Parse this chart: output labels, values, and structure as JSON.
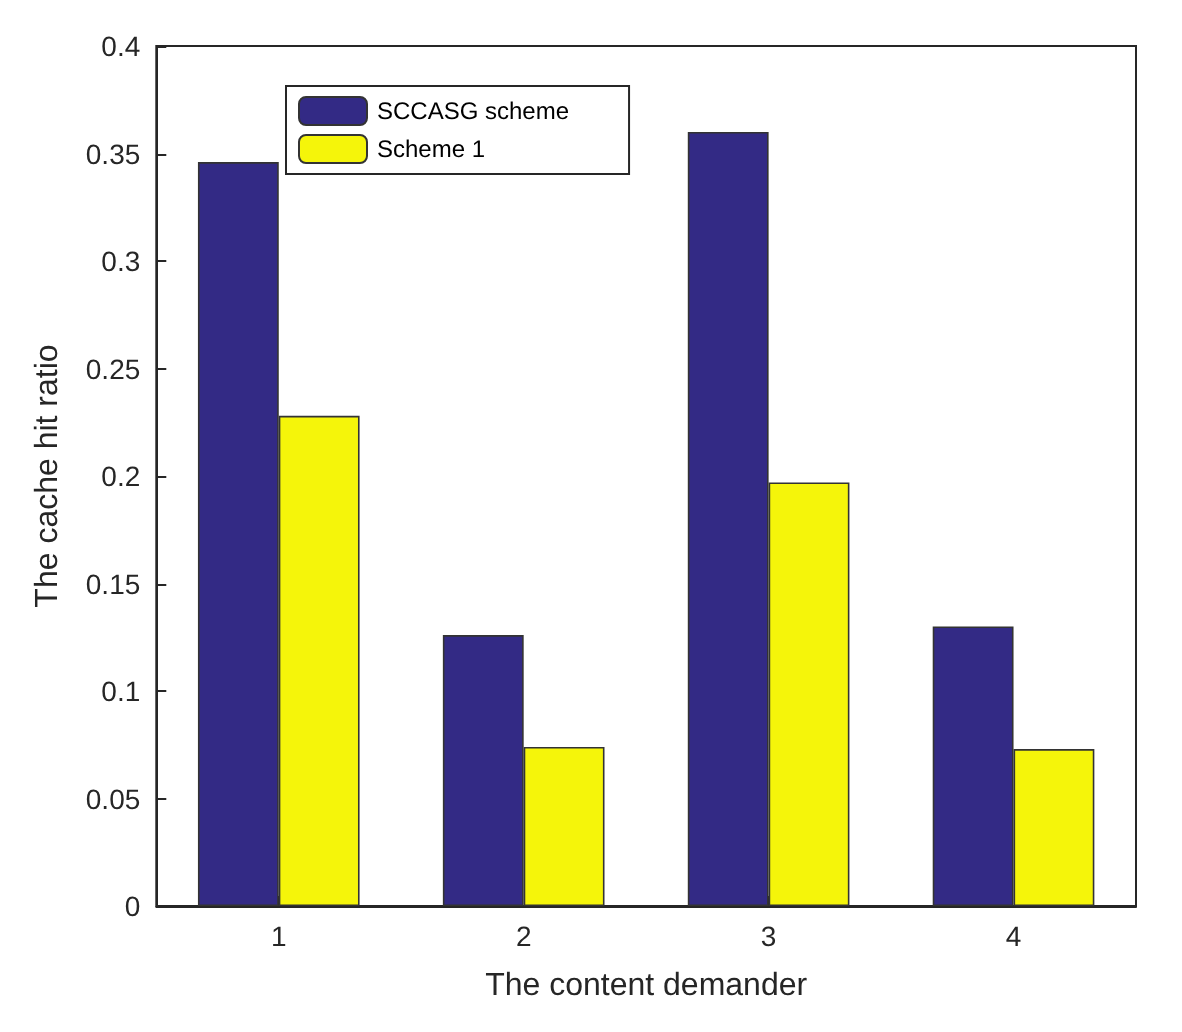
{
  "chart_data": {
    "type": "bar",
    "xlabel": "The content demander",
    "ylabel": "The cache hit ratio",
    "categories": [
      "1",
      "2",
      "3",
      "4"
    ],
    "series": [
      {
        "name": "SCCASG scheme",
        "color": "#332a85",
        "values": [
          0.346,
          0.126,
          0.36,
          0.13
        ]
      },
      {
        "name": "Scheme 1",
        "color": "#f5f50a",
        "values": [
          0.228,
          0.074,
          0.197,
          0.073
        ]
      }
    ],
    "ylim": [
      0,
      0.4
    ],
    "yticks": [
      0,
      0.05,
      0.1,
      0.15,
      0.2,
      0.25,
      0.3,
      0.35,
      0.4
    ],
    "grid": false,
    "legend": "top left"
  }
}
